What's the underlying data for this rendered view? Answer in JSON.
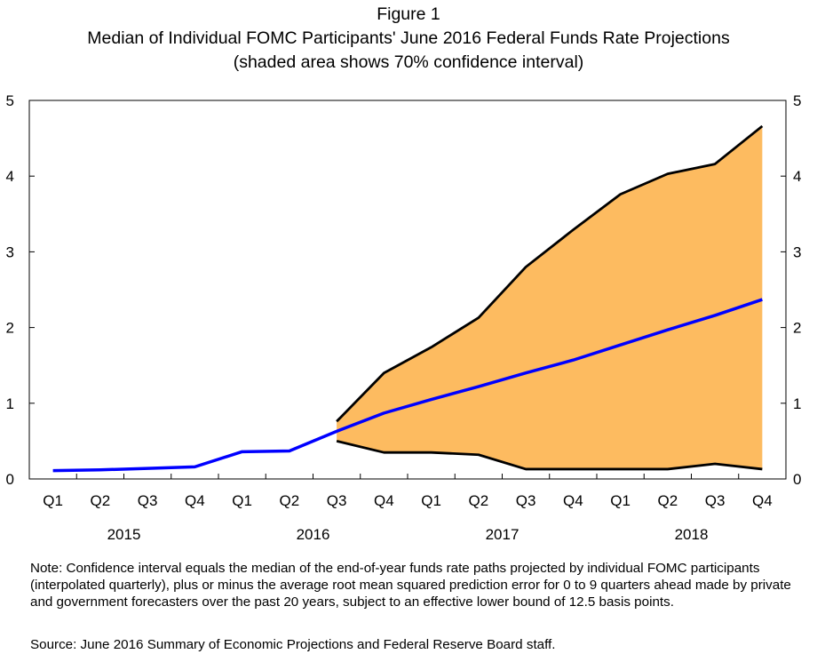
{
  "chart_data": {
    "type": "line",
    "figure_label": "Figure 1",
    "title": "Median of Individual FOMC Participants' June 2016 Federal Funds Rate Projections",
    "subtitle": "(shaded area shows 70% confidence interval)",
    "xlabel": "",
    "ylabel": "",
    "ylim": [
      0,
      5
    ],
    "yticks": [
      "0",
      "1",
      "2",
      "3",
      "4",
      "5"
    ],
    "right_yticks": [
      "0",
      "1",
      "2",
      "3",
      "4",
      "5"
    ],
    "categories": [
      "Q1",
      "Q2",
      "Q3",
      "Q4",
      "Q1",
      "Q2",
      "Q3",
      "Q4",
      "Q1",
      "Q2",
      "Q3",
      "Q4",
      "Q1",
      "Q2",
      "Q3",
      "Q4"
    ],
    "years": [
      {
        "label": "2015",
        "first": 0,
        "last": 3
      },
      {
        "label": "2016",
        "first": 4,
        "last": 7
      },
      {
        "label": "2017",
        "first": 8,
        "last": 11
      },
      {
        "label": "2018",
        "first": 12,
        "last": 15
      }
    ],
    "series": [
      {
        "name": "Median projection",
        "color": "#0000ff",
        "values": [
          0.11,
          0.12,
          0.14,
          0.16,
          0.36,
          0.37,
          0.63,
          0.87,
          1.05,
          1.22,
          1.4,
          1.57,
          1.77,
          1.97,
          2.16,
          2.37
        ]
      },
      {
        "name": "70% confidence interval upper bound",
        "color": "#000000",
        "values": [
          null,
          null,
          null,
          null,
          null,
          null,
          0.76,
          1.4,
          1.74,
          2.13,
          2.8,
          3.29,
          3.76,
          4.03,
          4.16,
          4.66
        ]
      },
      {
        "name": "70% confidence interval lower bound",
        "color": "#000000",
        "values": [
          null,
          null,
          null,
          null,
          null,
          null,
          0.5,
          0.35,
          0.35,
          0.32,
          0.13,
          0.13,
          0.13,
          0.13,
          0.2,
          0.13
        ]
      }
    ],
    "band": {
      "name": "70% confidence interval",
      "color": "#fdbb60",
      "start_index": 6,
      "end_index": 15
    },
    "grid": false
  },
  "note": "Note:  Confidence interval equals the median of the end-of-year funds rate paths projected by individual FOMC participants (interpolated quarterly), plus or minus the average root mean squared prediction error for 0 to 9 quarters ahead made by private and government forecasters over the past 20 years, subject to an effective lower bound of 12.5 basis points.",
  "source": "Source:  June 2016 Summary of Economic Projections and Federal Reserve Board staff."
}
